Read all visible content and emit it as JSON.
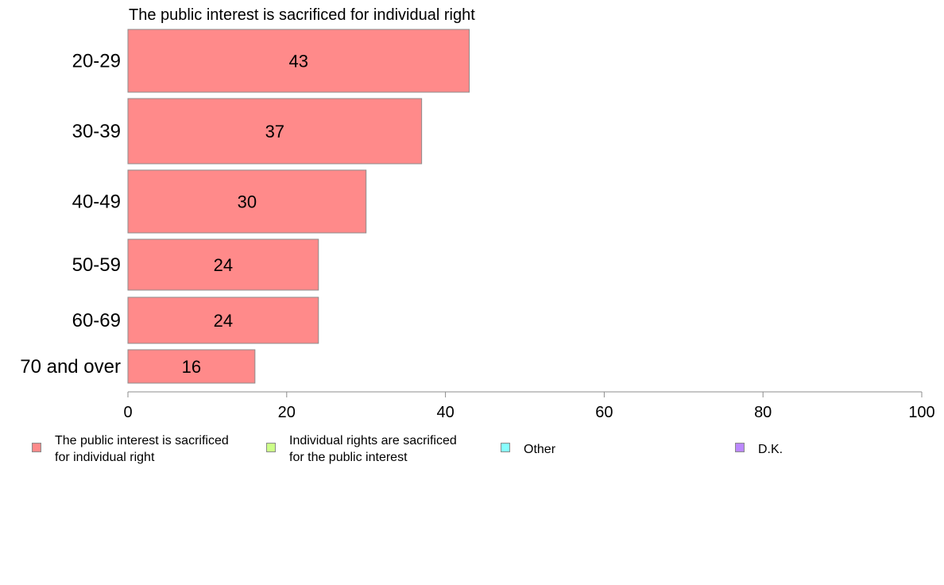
{
  "chart_data": {
    "type": "bar",
    "orientation": "horizontal",
    "title": "The public interest is sacrificed for individual right",
    "categories": [
      "20-29",
      "30-39",
      "40-49",
      "50-59",
      "60-69",
      "70 and over"
    ],
    "series": [
      {
        "name": "The public interest is sacrificed for individual right",
        "values": [
          43,
          37,
          30,
          24,
          24,
          16
        ],
        "data_labels": [
          "43",
          "37",
          "30",
          "24",
          "24",
          "16"
        ],
        "color": "#ff8a8a"
      }
    ],
    "xlim": [
      0,
      100
    ],
    "x_ticks": [
      0,
      20,
      40,
      60,
      80,
      100
    ],
    "x_tick_labels": [
      "0",
      "20",
      "40",
      "60",
      "80",
      "100"
    ],
    "grid": false,
    "legend_position": "bottom"
  },
  "legend": {
    "items": [
      {
        "label": "The public interest is sacrificed\nfor individual right",
        "color": "#ff8a8a"
      },
      {
        "label": "Individual rights are sacrificed\nfor the public interest",
        "color": "#ccff88"
      },
      {
        "label": "Other",
        "color": "#88ffff"
      },
      {
        "label": "D.K.",
        "color": "#bb88ff"
      }
    ]
  }
}
